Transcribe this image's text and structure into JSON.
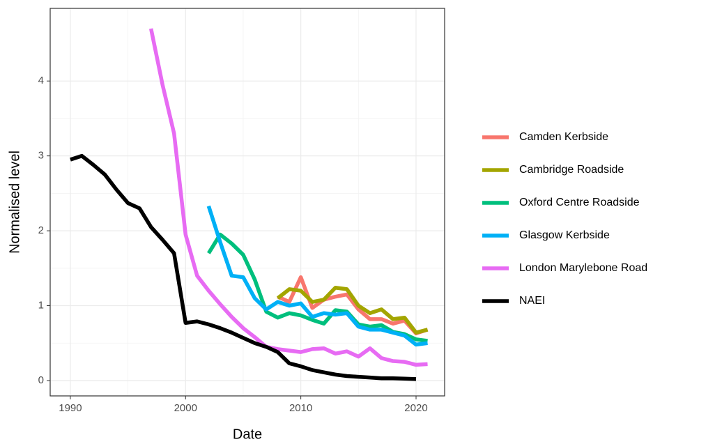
{
  "chart_data": {
    "type": "line",
    "x_label": "Date",
    "y_label": "Normalised level",
    "x": [
      1990,
      1991,
      1992,
      1993,
      1994,
      1995,
      1996,
      1997,
      1998,
      1999,
      2000,
      2001,
      2002,
      2003,
      2004,
      2005,
      2006,
      2007,
      2008,
      2009,
      2010,
      2011,
      2012,
      2013,
      2014,
      2015,
      2016,
      2017,
      2018,
      2019,
      2020,
      2021
    ],
    "series": [
      {
        "name": "Camden Kerbside",
        "color": "#F8766D",
        "values": [
          null,
          null,
          null,
          null,
          null,
          null,
          null,
          null,
          null,
          null,
          null,
          null,
          null,
          null,
          null,
          null,
          null,
          null,
          1.12,
          1.05,
          1.38,
          0.97,
          1.08,
          1.12,
          1.15,
          0.95,
          0.82,
          0.82,
          0.76,
          0.8,
          0.63,
          0.68
        ]
      },
      {
        "name": "Cambridge Roadside",
        "color": "#A3A500",
        "values": [
          null,
          null,
          null,
          null,
          null,
          null,
          null,
          null,
          null,
          null,
          null,
          null,
          null,
          null,
          null,
          null,
          null,
          null,
          1.1,
          1.22,
          1.2,
          1.05,
          1.08,
          1.24,
          1.22,
          1.0,
          0.9,
          0.95,
          0.82,
          0.84,
          0.64,
          0.68
        ]
      },
      {
        "name": "Oxford Centre Roadside",
        "color": "#00BF7D",
        "values": [
          null,
          null,
          null,
          null,
          null,
          null,
          null,
          null,
          null,
          null,
          null,
          null,
          1.7,
          1.95,
          1.83,
          1.68,
          1.35,
          0.92,
          0.84,
          0.9,
          0.87,
          0.81,
          0.76,
          0.94,
          0.92,
          0.75,
          0.72,
          0.74,
          0.65,
          0.62,
          0.55,
          0.53
        ]
      },
      {
        "name": "Glasgow Kerbside",
        "color": "#00B0F6",
        "values": [
          null,
          null,
          null,
          null,
          null,
          null,
          null,
          null,
          null,
          null,
          null,
          null,
          2.33,
          1.85,
          1.4,
          1.38,
          1.1,
          0.95,
          1.05,
          1.0,
          1.03,
          0.85,
          0.9,
          0.88,
          0.9,
          0.72,
          0.68,
          0.68,
          0.64,
          0.6,
          0.48,
          0.5
        ]
      },
      {
        "name": "London Marylebone Road",
        "color": "#E76BF3",
        "values": [
          null,
          null,
          null,
          null,
          null,
          null,
          null,
          4.7,
          3.95,
          3.3,
          1.95,
          1.4,
          1.2,
          1.02,
          0.85,
          0.7,
          0.58,
          0.45,
          0.42,
          0.4,
          0.38,
          0.42,
          0.43,
          0.36,
          0.39,
          0.32,
          0.43,
          0.3,
          0.26,
          0.25,
          0.21,
          0.22
        ]
      },
      {
        "name": "NAEI",
        "color": "#000000",
        "values": [
          2.95,
          3.0,
          2.88,
          2.75,
          2.55,
          2.37,
          2.3,
          2.05,
          1.88,
          1.7,
          0.77,
          0.79,
          0.75,
          0.7,
          0.64,
          0.57,
          0.5,
          0.45,
          0.38,
          0.23,
          0.19,
          0.14,
          0.11,
          0.08,
          0.06,
          0.05,
          0.04,
          0.03,
          0.03,
          0.025,
          0.02,
          null
        ]
      }
    ],
    "xlim": [
      1988.25,
      2022.48
    ],
    "xticks": [
      1990,
      2000,
      2010,
      2020
    ],
    "ylim": [
      -0.205,
      4.97
    ],
    "yticks": [
      0,
      1,
      2,
      3,
      4
    ],
    "grid": true,
    "minor_grid": true,
    "legend": "right"
  }
}
